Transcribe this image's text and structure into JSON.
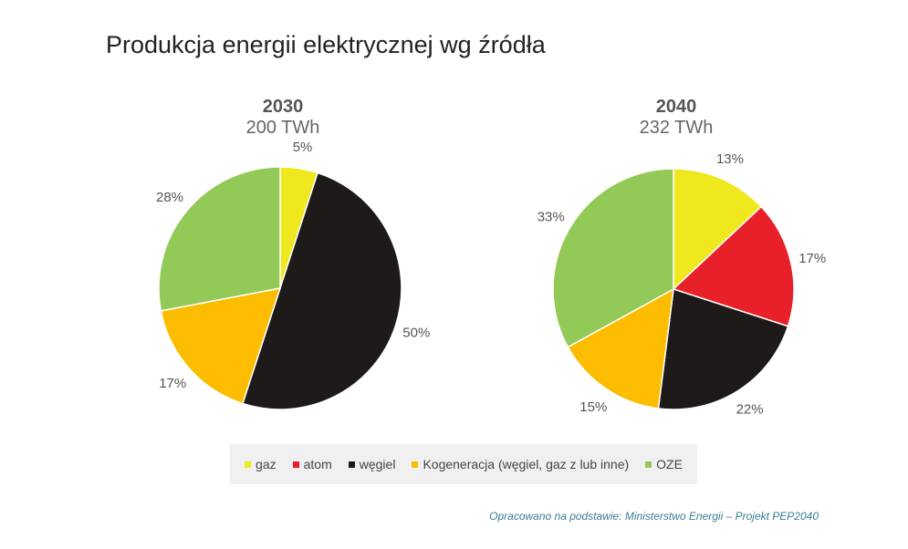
{
  "title": "Produkcja energii elektrycznej wg źródła",
  "source": "Opracowano na podstawie: Ministerstwo Energii – Projekt PEP2040",
  "chart_data": [
    {
      "type": "pie",
      "title": "2030",
      "subtitle": "200 TWh",
      "categories": [
        "gaz",
        "węgiel",
        "Kogeneracja (węgiel, gaz z lub inne)",
        "OZE"
      ],
      "values": [
        5,
        50,
        17,
        28
      ],
      "colors": [
        "#f0e81e",
        "#1e1a1a",
        "#fcbc00",
        "#92c957"
      ],
      "labels": [
        "5%",
        "50%",
        "17%",
        "28%"
      ]
    },
    {
      "type": "pie",
      "title": "2040",
      "subtitle": "232 TWh",
      "categories": [
        "gaz",
        "atom",
        "węgiel",
        "Kogeneracja (węgiel, gaz z lub inne)",
        "OZE"
      ],
      "values": [
        13,
        17,
        22,
        15,
        33
      ],
      "colors": [
        "#f0e81e",
        "#e8202a",
        "#1e1a1a",
        "#fcbc00",
        "#92c957"
      ],
      "labels": [
        "13%",
        "17%",
        "22%",
        "15%",
        "33%"
      ]
    }
  ],
  "legend": [
    {
      "label": "gaz",
      "color": "#f0e81e"
    },
    {
      "label": "atom",
      "color": "#e8202a"
    },
    {
      "label": "węgiel",
      "color": "#1e1a1a"
    },
    {
      "label": "Kogeneracja (węgiel, gaz z lub inne)",
      "color": "#fcbc00"
    },
    {
      "label": "OZE",
      "color": "#92c957"
    }
  ]
}
